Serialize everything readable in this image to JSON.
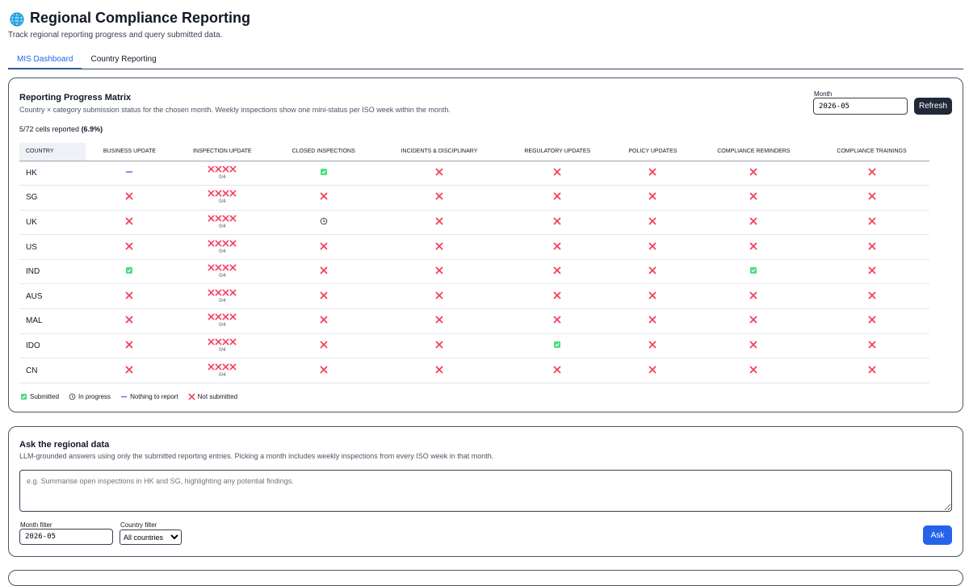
{
  "header": {
    "title": "Regional Compliance Reporting",
    "subtitle": "Track regional reporting progress and query submitted data."
  },
  "tabs": [
    "MIS Dashboard",
    "Country Reporting"
  ],
  "matrix": {
    "title": "Reporting Progress Matrix",
    "description": "Country × category submission status for the chosen month. Weekly inspections show one mini-status per ISO week within the month.",
    "month_label": "Month",
    "month": "2026-05",
    "refresh": "Refresh",
    "summary": "5/72 cells reported",
    "summary_pct": "(6.9%)",
    "columns": [
      "COUNTRY",
      "BUSINESS UPDATE",
      "INSPECTION UPDATE",
      "CLOSED INSPECTIONS",
      "INCIDENTS & DISCIPLINARY",
      "REGULATORY UPDATES",
      "POLICY UPDATES",
      "COMPLIANCE REMINDERS",
      "COMPLIANCE TRAININGS"
    ],
    "rows": [
      {
        "country": "HK",
        "cells": [
          "Nothing to report",
          {
            "weeks": [
              "Not submitted",
              "Not submitted",
              "Not submitted",
              "Not submitted"
            ],
            "count": "0/4"
          },
          "Submitted",
          "Not submitted",
          "Not submitted",
          "Not submitted",
          "Not submitted",
          "Not submitted"
        ]
      },
      {
        "country": "SG",
        "cells": [
          "Not submitted",
          {
            "weeks": [
              "Not submitted",
              "Not submitted",
              "Not submitted",
              "Not submitted"
            ],
            "count": "0/4"
          },
          "Not submitted",
          "Not submitted",
          "Not submitted",
          "Not submitted",
          "Not submitted",
          "Not submitted"
        ]
      },
      {
        "country": "UK",
        "cells": [
          "Not submitted",
          {
            "weeks": [
              "Not submitted",
              "Not submitted",
              "Not submitted",
              "Not submitted"
            ],
            "count": "0/4"
          },
          "In progress",
          "Not submitted",
          "Not submitted",
          "Not submitted",
          "Not submitted",
          "Not submitted"
        ]
      },
      {
        "country": "US",
        "cells": [
          "Not submitted",
          {
            "weeks": [
              "Not submitted",
              "Not submitted",
              "Not submitted",
              "Not submitted"
            ],
            "count": "0/4"
          },
          "Not submitted",
          "Not submitted",
          "Not submitted",
          "Not submitted",
          "Not submitted",
          "Not submitted"
        ]
      },
      {
        "country": "IND",
        "cells": [
          "Submitted",
          {
            "weeks": [
              "Not submitted",
              "Not submitted",
              "Not submitted",
              "Not submitted"
            ],
            "count": "0/4"
          },
          "Not submitted",
          "Not submitted",
          "Not submitted",
          "Not submitted",
          "Submitted",
          "Not submitted"
        ]
      },
      {
        "country": "AUS",
        "cells": [
          "Not submitted",
          {
            "weeks": [
              "Not submitted",
              "Not submitted",
              "Not submitted",
              "Not submitted"
            ],
            "count": "0/4"
          },
          "Not submitted",
          "Not submitted",
          "Not submitted",
          "Not submitted",
          "Not submitted",
          "Not submitted"
        ]
      },
      {
        "country": "MAL",
        "cells": [
          "Not submitted",
          {
            "weeks": [
              "Not submitted",
              "Not submitted",
              "Not submitted",
              "Not submitted"
            ],
            "count": "0/4"
          },
          "Not submitted",
          "Not submitted",
          "Not submitted",
          "Not submitted",
          "Not submitted",
          "Not submitted"
        ]
      },
      {
        "country": "IDO",
        "cells": [
          "Not submitted",
          {
            "weeks": [
              "Not submitted",
              "Not submitted",
              "Not submitted",
              "Not submitted"
            ],
            "count": "0/4"
          },
          "Not submitted",
          "Not submitted",
          "Submitted",
          "Not submitted",
          "Not submitted",
          "Not submitted"
        ]
      },
      {
        "country": "CN",
        "cells": [
          "Not submitted",
          {
            "weeks": [
              "Not submitted",
              "Not submitted",
              "Not submitted",
              "Not submitted"
            ],
            "count": "0/4"
          },
          "Not submitted",
          "Not submitted",
          "Not submitted",
          "Not submitted",
          "Not submitted",
          "Not submitted"
        ]
      }
    ],
    "legend": [
      "Submitted",
      "In progress",
      "Nothing to report",
      "Not submitted"
    ]
  },
  "ask": {
    "title": "Ask the regional data",
    "description": "LLM-grounded answers using only the submitted reporting entries. Picking a month includes weekly inspections from every ISO week in that month.",
    "placeholder": "e.g. Summarise open inspections in HK and SG, highlighting any potential findings.",
    "month_filter_label": "Month filter",
    "month_filter": "2026-05",
    "country_filter_label": "Country filter",
    "country_filter": "All countries",
    "button": "Ask"
  }
}
